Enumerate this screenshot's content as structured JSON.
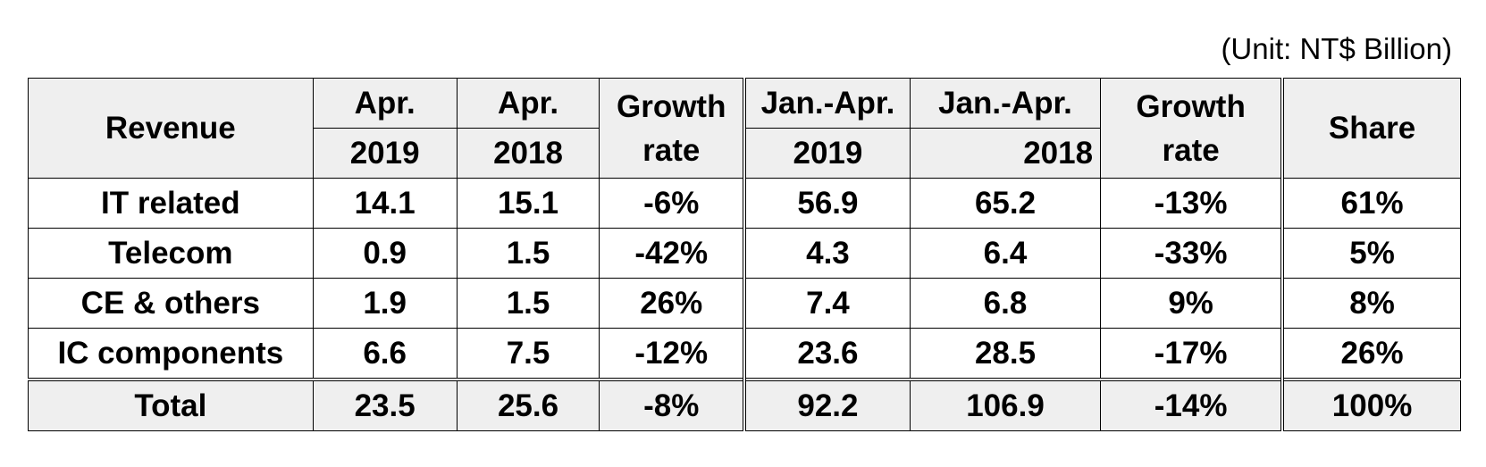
{
  "unit_note": "(Unit: NT$ Billion)",
  "header": {
    "revenue": "Revenue",
    "col1_top": "Apr.",
    "col1_bottom": "2019",
    "col2_top": "Apr.",
    "col2_bottom": "2018",
    "col3_top": "Growth",
    "col3_bottom": "rate",
    "col4_top": "Jan.-Apr.",
    "col4_bottom": "2019",
    "col5_top": "Jan.-Apr.",
    "col5_bottom": "2018",
    "col6_top": "Growth",
    "col6_bottom": "rate",
    "share": "Share"
  },
  "rows": [
    {
      "label": "IT related",
      "c1": "14.1",
      "c2": "15.1",
      "c3": "-6%",
      "c4": "56.9",
      "c5": "65.2",
      "c6": "-13%",
      "c7": "61%"
    },
    {
      "label": "Telecom",
      "c1": "0.9",
      "c2": "1.5",
      "c3": "-42%",
      "c4": "4.3",
      "c5": "6.4",
      "c6": "-33%",
      "c7": "5%"
    },
    {
      "label": "CE & others",
      "c1": "1.9",
      "c2": "1.5",
      "c3": "26%",
      "c4": "7.4",
      "c5": "6.8",
      "c6": "9%",
      "c7": "8%"
    },
    {
      "label": "IC components",
      "c1": "6.6",
      "c2": "7.5",
      "c3": "-12%",
      "c4": "23.6",
      "c5": "28.5",
      "c6": "-17%",
      "c7": "26%"
    }
  ],
  "total": {
    "label": "Total",
    "c1": "23.5",
    "c2": "25.6",
    "c3": "-8%",
    "c4": "92.2",
    "c5": "106.9",
    "c6": "-14%",
    "c7": "100%"
  },
  "colors": {
    "header_bg": "#efefef",
    "border": "#000000",
    "text": "#000000"
  },
  "chart_data": {
    "type": "table",
    "title": "",
    "unit": "(Unit: NT$ Billion)",
    "columns": [
      "Revenue",
      "Apr. 2019",
      "Apr. 2018",
      "Growth rate",
      "Jan.-Apr. 2019",
      "Jan.-Apr. 2018",
      "Growth rate",
      "Share"
    ],
    "rows": [
      [
        "IT related",
        14.1,
        15.1,
        "-6%",
        56.9,
        65.2,
        "-13%",
        "61%"
      ],
      [
        "Telecom",
        0.9,
        1.5,
        "-42%",
        4.3,
        6.4,
        "-33%",
        "5%"
      ],
      [
        "CE & others",
        1.9,
        1.5,
        "26%",
        7.4,
        6.8,
        "9%",
        "8%"
      ],
      [
        "IC components",
        6.6,
        7.5,
        "-12%",
        23.6,
        28.5,
        "-17%",
        "26%"
      ],
      [
        "Total",
        23.5,
        25.6,
        "-8%",
        92.2,
        106.9,
        "-14%",
        "100%"
      ]
    ]
  }
}
